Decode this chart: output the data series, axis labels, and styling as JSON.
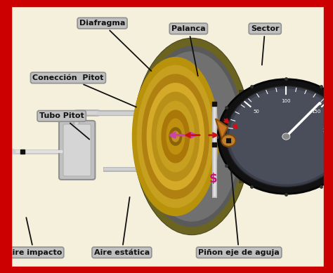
{
  "bg_color": "#f5f0dc",
  "border_color": "#cc0000",
  "figsize": [
    4.74,
    3.89
  ],
  "dpi": 100,
  "labels": [
    {
      "text": "Diafragma",
      "xt": 0.3,
      "yt": 0.915,
      "xp": 0.455,
      "yp": 0.735,
      "ha": "center"
    },
    {
      "text": "Palanca",
      "xt": 0.565,
      "yt": 0.895,
      "xp": 0.595,
      "yp": 0.715,
      "ha": "center"
    },
    {
      "text": "Sector",
      "xt": 0.8,
      "yt": 0.895,
      "xp": 0.79,
      "yp": 0.755,
      "ha": "center"
    },
    {
      "text": "Conección  Pitot",
      "xt": 0.195,
      "yt": 0.715,
      "xp": 0.41,
      "yp": 0.605,
      "ha": "center"
    },
    {
      "text": "Tubo Pitot",
      "xt": 0.175,
      "yt": 0.575,
      "xp": 0.265,
      "yp": 0.485,
      "ha": "center"
    },
    {
      "text": "Aire impacto",
      "xt": 0.09,
      "yt": 0.075,
      "xp": 0.065,
      "yp": 0.21,
      "ha": "center"
    },
    {
      "text": "Aire estática",
      "xt": 0.36,
      "yt": 0.075,
      "xp": 0.385,
      "yp": 0.285,
      "ha": "center"
    },
    {
      "text": "Piñon eje de aguja",
      "xt": 0.72,
      "yt": 0.075,
      "xp": 0.695,
      "yp": 0.385,
      "ha": "center"
    }
  ]
}
